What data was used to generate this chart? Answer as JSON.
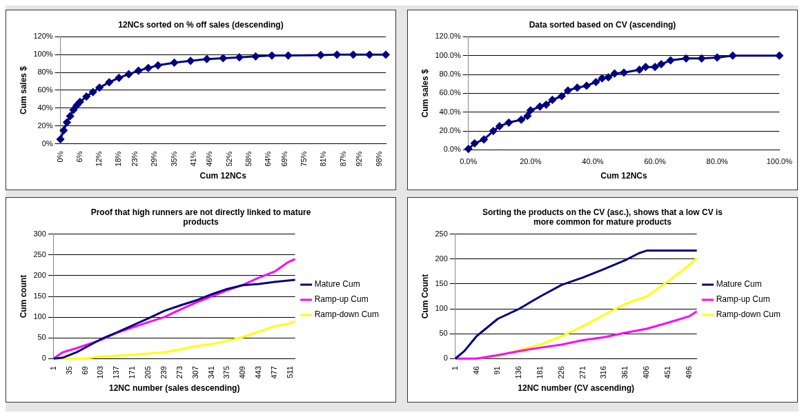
{
  "chart_data": [
    {
      "type": "line",
      "title": "12NCs sorted on % off sales (descending)",
      "xlabel": "Cum 12NCs",
      "ylabel": "Cum sales $",
      "marker": "diamond",
      "grid": "y",
      "xlim": [
        0,
        100
      ],
      "xticks": [
        {
          "value": 0,
          "label": "0%"
        },
        {
          "value": 6,
          "label": "6%"
        },
        {
          "value": 12,
          "label": "12%"
        },
        {
          "value": 18,
          "label": "18%"
        },
        {
          "value": 23,
          "label": "23%"
        },
        {
          "value": 29,
          "label": "29%"
        },
        {
          "value": 35,
          "label": "35%"
        },
        {
          "value": 41,
          "label": "41%"
        },
        {
          "value": 46,
          "label": "46%"
        },
        {
          "value": 52,
          "label": "52%"
        },
        {
          "value": 58,
          "label": "58%"
        },
        {
          "value": 64,
          "label": "64%"
        },
        {
          "value": 69,
          "label": "69%"
        },
        {
          "value": 75,
          "label": "75%"
        },
        {
          "value": 81,
          "label": "81%"
        },
        {
          "value": 87,
          "label": "87%"
        },
        {
          "value": 92,
          "label": "92%"
        },
        {
          "value": 98,
          "label": "98%"
        }
      ],
      "ylim": [
        0,
        120
      ],
      "yticks": [
        {
          "value": 0,
          "label": "0%"
        },
        {
          "value": 20,
          "label": "20%"
        },
        {
          "value": 40,
          "label": "40%"
        },
        {
          "value": 60,
          "label": "60%"
        },
        {
          "value": 80,
          "label": "80%"
        },
        {
          "value": 100,
          "label": "100%"
        },
        {
          "value": 120,
          "label": "120%"
        }
      ],
      "series": [
        {
          "color": "#000080",
          "x": [
            0,
            1,
            2,
            3,
            4,
            5,
            6,
            8,
            10,
            12,
            15,
            18,
            21,
            24,
            27,
            30,
            35,
            40,
            45,
            50,
            55,
            60,
            65,
            70,
            80,
            85,
            90,
            95,
            100
          ],
          "values": [
            5,
            15,
            24,
            31,
            38,
            43,
            47,
            53,
            58,
            63,
            69,
            74,
            78,
            82,
            85,
            88,
            91,
            93,
            95,
            96,
            97,
            98,
            99,
            99,
            99.5,
            100,
            100,
            100,
            100
          ]
        }
      ]
    },
    {
      "type": "line",
      "title": "Data sorted based on CV (ascending)",
      "xlabel": "Cum 12NCs",
      "ylabel": "Cum sales $",
      "marker": "diamond",
      "grid": "y",
      "xlim": [
        0,
        100
      ],
      "xticks": [
        {
          "value": 0,
          "label": "0.0%"
        },
        {
          "value": 20,
          "label": "20.0%"
        },
        {
          "value": 40,
          "label": "40.0%"
        },
        {
          "value": 60,
          "label": "60.0%"
        },
        {
          "value": 80,
          "label": "80.0%"
        },
        {
          "value": 100,
          "label": "100.0%"
        }
      ],
      "ylim": [
        0,
        120
      ],
      "yticks": [
        {
          "value": 0,
          "label": "0.0%"
        },
        {
          "value": 20,
          "label": "20.0%"
        },
        {
          "value": 40,
          "label": "40.0%"
        },
        {
          "value": 60,
          "label": "60.0%"
        },
        {
          "value": 80,
          "label": "80.0%"
        },
        {
          "value": 100,
          "label": "100.0%"
        },
        {
          "value": 120,
          "label": "120.0%"
        }
      ],
      "series": [
        {
          "color": "#000080",
          "x": [
            0,
            2,
            5,
            8,
            10,
            13,
            17,
            19,
            20,
            23,
            25,
            27,
            30,
            32,
            35,
            38,
            41,
            43,
            45,
            47,
            50,
            55,
            57,
            60,
            62,
            65,
            70,
            75,
            80,
            85,
            100
          ],
          "values": [
            1,
            7,
            11,
            20,
            25,
            29,
            32,
            36,
            42,
            46,
            48,
            53,
            57,
            63,
            66,
            68,
            72,
            76,
            77,
            81,
            82,
            85,
            88,
            88,
            91,
            95,
            97,
            97,
            98,
            100,
            100
          ]
        }
      ]
    },
    {
      "type": "line",
      "title": "Proof that high runners are not directly linked to mature products",
      "xlabel": "12NC number (sales descending)",
      "ylabel": "Cum count",
      "marker": "none",
      "grid": "y",
      "legend": "right",
      "xlim": [
        1,
        521
      ],
      "xticks": [
        1,
        35,
        69,
        103,
        137,
        171,
        205,
        239,
        273,
        307,
        341,
        375,
        409,
        443,
        477,
        511
      ],
      "ylim": [
        0,
        300
      ],
      "yticks": [
        0,
        50,
        100,
        150,
        200,
        250,
        300
      ],
      "series": [
        {
          "name": "Mature Cum",
          "color": "#000080",
          "x": [
            1,
            20,
            50,
            103,
            137,
            171,
            205,
            239,
            273,
            307,
            341,
            375,
            409,
            443,
            477,
            521
          ],
          "values": [
            0,
            2,
            15,
            47,
            63,
            80,
            97,
            115,
            128,
            140,
            155,
            168,
            177,
            180,
            185,
            190
          ]
        },
        {
          "name": "Ramp-up Cum",
          "color": "#ff00ff",
          "x": [
            1,
            20,
            50,
            103,
            137,
            171,
            205,
            239,
            273,
            307,
            341,
            375,
            409,
            443,
            477,
            505,
            521
          ],
          "values": [
            0,
            15,
            25,
            45,
            62,
            75,
            88,
            100,
            118,
            135,
            150,
            165,
            178,
            195,
            210,
            232,
            240
          ]
        },
        {
          "name": "Ramp-down Cum",
          "color": "#ffff00",
          "x": [
            1,
            69,
            103,
            137,
            171,
            205,
            239,
            273,
            307,
            341,
            375,
            409,
            443,
            477,
            511,
            521
          ],
          "values": [
            0,
            0,
            5,
            7,
            9,
            12,
            15,
            22,
            30,
            35,
            43,
            52,
            65,
            78,
            85,
            90
          ]
        }
      ]
    },
    {
      "type": "line",
      "title": "Sorting the products on the CV (asc.), shows that a low CV is more common for mature products",
      "xlabel": "12NC number (CV ascending)",
      "ylabel": "Cum Count",
      "marker": "none",
      "grid": "y",
      "legend": "right",
      "xlim": [
        1,
        512
      ],
      "xticks": [
        1,
        46,
        91,
        136,
        181,
        226,
        271,
        316,
        361,
        406,
        451,
        496
      ],
      "ylim": [
        0,
        250
      ],
      "yticks": [
        0,
        50,
        100,
        150,
        200,
        250
      ],
      "series": [
        {
          "name": "Mature Cum",
          "color": "#000080",
          "x": [
            1,
            20,
            46,
            91,
            136,
            181,
            226,
            271,
            316,
            361,
            390,
            406,
            512
          ],
          "values": [
            0,
            15,
            45,
            80,
            100,
            125,
            148,
            163,
            180,
            198,
            212,
            217,
            217
          ]
        },
        {
          "name": "Ramp-up Cum",
          "color": "#ff00ff",
          "x": [
            1,
            46,
            91,
            136,
            181,
            226,
            271,
            316,
            361,
            406,
            451,
            496,
            512
          ],
          "values": [
            0,
            0,
            7,
            15,
            22,
            28,
            37,
            43,
            52,
            60,
            72,
            85,
            95
          ]
        },
        {
          "name": "Ramp-down Cum",
          "color": "#ffff00",
          "x": [
            1,
            46,
            91,
            136,
            181,
            226,
            271,
            316,
            361,
            406,
            451,
            496,
            512
          ],
          "values": [
            0,
            0,
            5,
            17,
            28,
            45,
            65,
            88,
            110,
            125,
            155,
            188,
            202
          ]
        }
      ]
    }
  ]
}
